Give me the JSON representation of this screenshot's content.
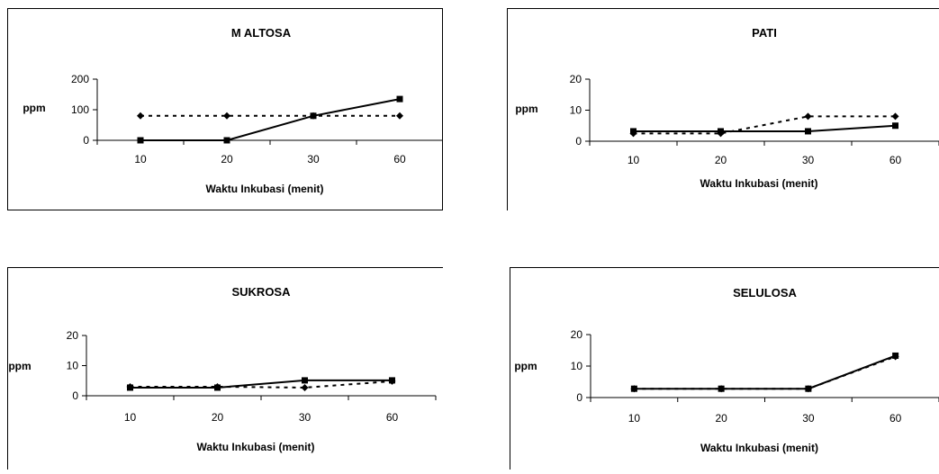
{
  "colors": {
    "frame": "#000000",
    "line": "#000000",
    "background": "#ffffff"
  },
  "chart_data": [
    {
      "type": "line",
      "title": "M ALTOSA",
      "xlabel": "Waktu Inkubasi (menit)",
      "ylabel": "ppm",
      "categories": [
        "10",
        "20",
        "30",
        "60"
      ],
      "ylim": [
        0,
        200
      ],
      "yticks": [
        0,
        100,
        200
      ],
      "series": [
        {
          "style": "dashed",
          "marker": "diamond",
          "values": [
            80,
            80,
            80,
            80
          ]
        },
        {
          "style": "solid",
          "marker": "square",
          "values": [
            0,
            0,
            80,
            135
          ]
        }
      ]
    },
    {
      "type": "line",
      "title": "PATI",
      "xlabel": "Waktu Inkubasi (menit)",
      "ylabel": "ppm",
      "categories": [
        "10",
        "20",
        "30",
        "60"
      ],
      "ylim": [
        0,
        20
      ],
      "yticks": [
        0,
        10,
        20
      ],
      "series": [
        {
          "style": "dashed",
          "marker": "diamond",
          "values": [
            2.5,
            2.5,
            8,
            8
          ]
        },
        {
          "style": "solid",
          "marker": "square",
          "values": [
            3.2,
            3.2,
            3.2,
            5
          ]
        }
      ]
    },
    {
      "type": "line",
      "title": "SUKROSA",
      "xlabel": "Waktu Inkubasi (menit)",
      "ylabel": "ppm",
      "categories": [
        "10",
        "20",
        "30",
        "60"
      ],
      "ylim": [
        0,
        20
      ],
      "yticks": [
        0,
        10,
        20
      ],
      "series": [
        {
          "style": "dashed",
          "marker": "diamond",
          "values": [
            3,
            3,
            2.7,
            4.8
          ]
        },
        {
          "style": "solid",
          "marker": "square",
          "values": [
            2.7,
            2.7,
            5.1,
            5.1
          ]
        }
      ]
    },
    {
      "type": "line",
      "title": "SELULOSA",
      "xlabel": "Waktu Inkubasi (menit)",
      "ylabel": "ppm",
      "categories": [
        "10",
        "20",
        "30",
        "60"
      ],
      "ylim": [
        0,
        20
      ],
      "yticks": [
        0,
        10,
        20
      ],
      "series": [
        {
          "style": "dashed",
          "marker": "diamond",
          "values": [
            2.8,
            2.8,
            2.8,
            13
          ]
        },
        {
          "style": "solid",
          "marker": "square",
          "values": [
            2.8,
            2.8,
            2.8,
            13.3
          ]
        }
      ]
    }
  ]
}
